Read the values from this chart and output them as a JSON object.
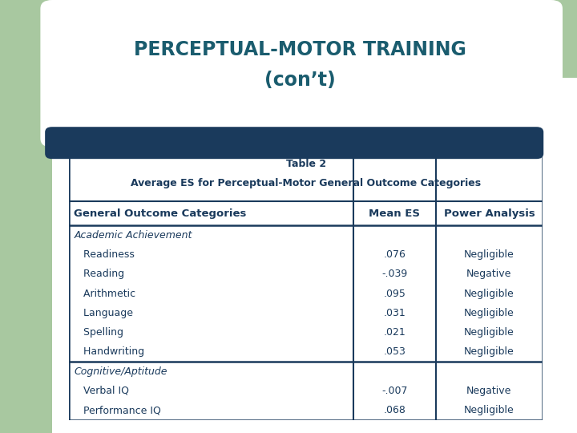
{
  "title_line1": "PERCEPTUAL-MOTOR TRAINING",
  "title_line2": "(con’t)",
  "title_color": "#1a5c6e",
  "title_fontsize": 17,
  "bg_color": "#ffffff",
  "green_color": "#a8c8a0",
  "blue_bar_color": "#1a3a5c",
  "table_caption_line1": "Table 2",
  "table_caption_line2": "Average ES for Perceptual-Motor General Outcome Categories",
  "header_row": [
    "General Outcome Categories",
    "Mean ES",
    "Power Analysis"
  ],
  "rows": [
    [
      "Academic Achievement",
      "",
      "",
      "italic_header"
    ],
    [
      "   Readiness",
      ".076",
      "Negligible",
      "normal"
    ],
    [
      "   Reading",
      "-.039",
      "Negative",
      "normal"
    ],
    [
      "   Arithmetic",
      ".095",
      "Negligible",
      "normal"
    ],
    [
      "   Language",
      ".031",
      "Negligible",
      "normal"
    ],
    [
      "   Spelling",
      ".021",
      "Negligible",
      "normal"
    ],
    [
      "   Handwriting",
      ".053",
      "Negligible",
      "normal"
    ],
    [
      "Cognitive/Aptitude",
      "",
      "",
      "italic_header"
    ],
    [
      "   Verbal IQ",
      "-.007",
      "Negative",
      "normal"
    ],
    [
      "   Performance IQ",
      ".068",
      "Negligible",
      "normal"
    ]
  ],
  "border_color": "#1a3a5c",
  "text_color": "#1a3a5c",
  "col_splits": [
    0.6,
    0.775
  ],
  "group_separator_after_row": 6
}
